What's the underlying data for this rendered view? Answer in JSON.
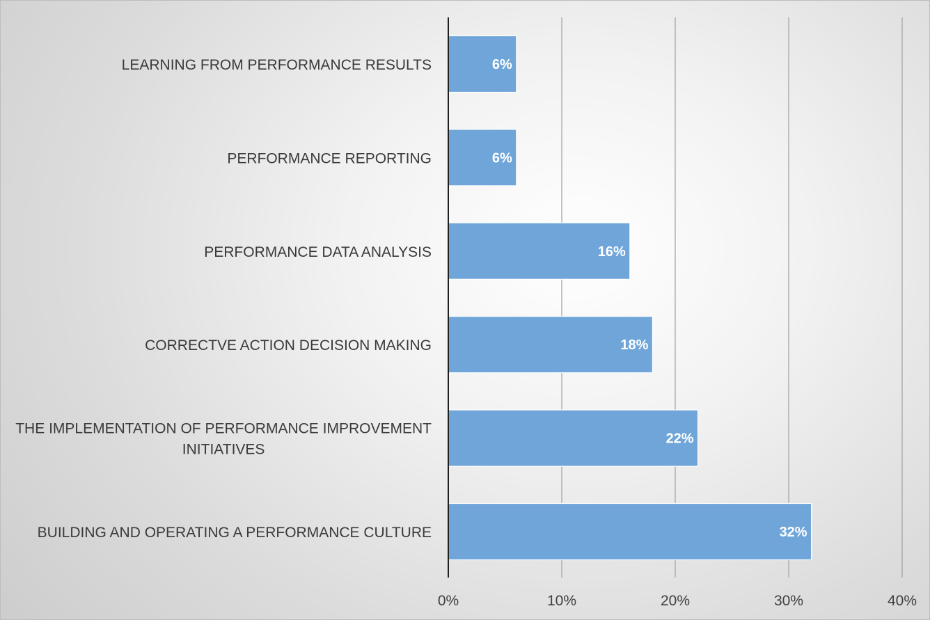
{
  "chart_data": {
    "type": "bar",
    "orientation": "horizontal",
    "categories": [
      "LEARNING FROM PERFORMANCE RESULTS",
      "PERFORMANCE REPORTING",
      "PERFORMANCE DATA ANALYSIS",
      "CORRECTVE ACTION DECISION MAKING",
      "THE IMPLEMENTATION OF PERFORMANCE IMPROVEMENT INITIATIVES",
      "BUILDING AND OPERATING A PERFORMANCE CULTURE"
    ],
    "category_lines": [
      [
        "LEARNING FROM PERFORMANCE RESULTS"
      ],
      [
        "PERFORMANCE REPORTING"
      ],
      [
        "PERFORMANCE DATA ANALYSIS"
      ],
      [
        "CORRECTVE ACTION DECISION MAKING"
      ],
      [
        "THE IMPLEMENTATION OF PERFORMANCE IMPROVEMENT",
        "INITIATIVES"
      ],
      [
        "BUILDING AND OPERATING A PERFORMANCE CULTURE"
      ]
    ],
    "values": [
      6,
      6,
      16,
      18,
      22,
      32
    ],
    "data_labels": [
      "6%",
      "6%",
      "16%",
      "18%",
      "22%",
      "32%"
    ],
    "xlim": [
      0,
      40
    ],
    "xticks": [
      0,
      10,
      20,
      30,
      40
    ],
    "xtick_labels": [
      "0%",
      "10%",
      "20%",
      "30%",
      "40%"
    ],
    "title": "",
    "xlabel": "",
    "ylabel": "",
    "grid": "vertical",
    "legend": "none",
    "bar_color": "#6fa5d8",
    "label_color": "#ffffff"
  }
}
